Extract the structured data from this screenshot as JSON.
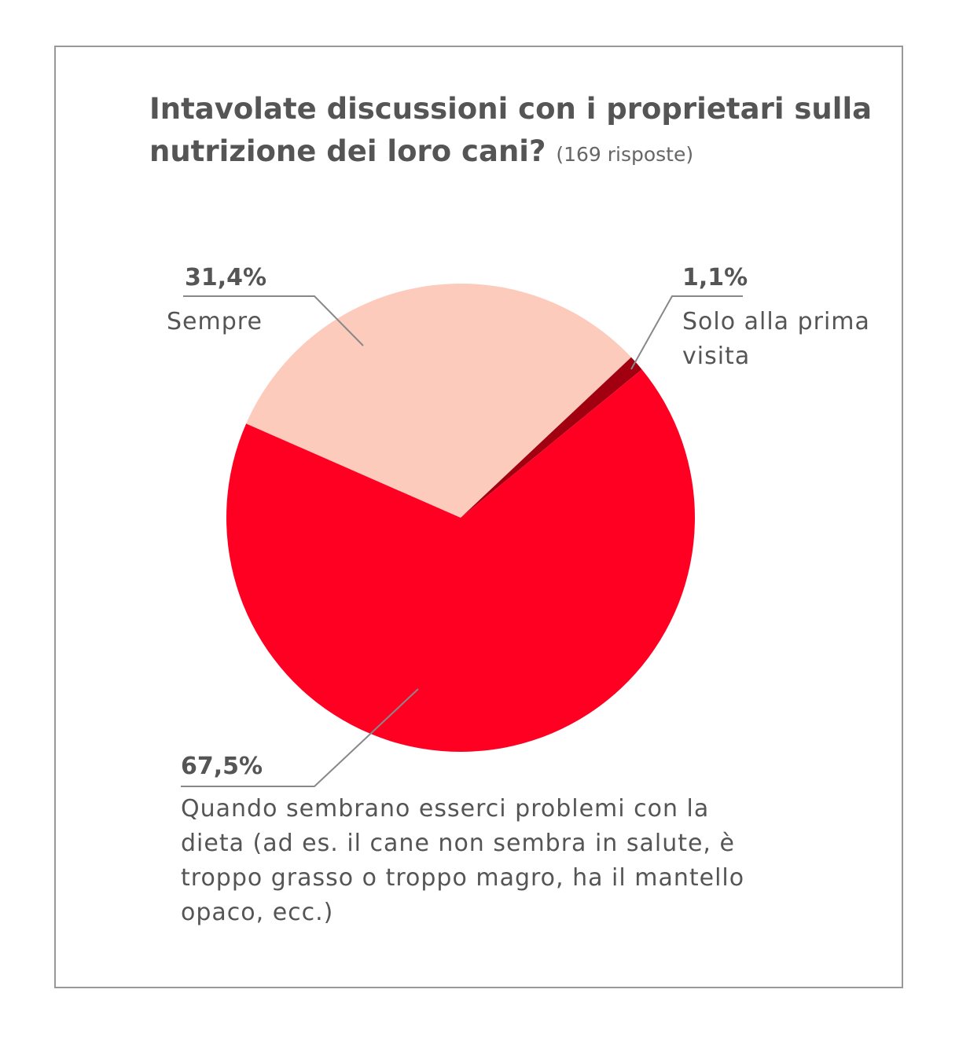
{
  "chart_data": {
    "type": "pie",
    "title": "Intavolate discussioni con i proprietari sulla nutrizione dei loro cani?",
    "subtitle": "(169 risposte)",
    "categories": [
      "Sempre",
      "Solo alla prima visita",
      "Quando sembrano esserci problemi con la dieta (ad es. il cane non sembra in salute, è troppo grasso o troppo magro, ha il mantello opaco, ecc.)"
    ],
    "values": [
      31.4,
      1.1,
      67.5
    ],
    "value_labels": [
      "31,4%",
      "1,1%",
      "67,5%"
    ],
    "colors": [
      "#fccbbb",
      "#a00010",
      "#ff0022"
    ]
  }
}
